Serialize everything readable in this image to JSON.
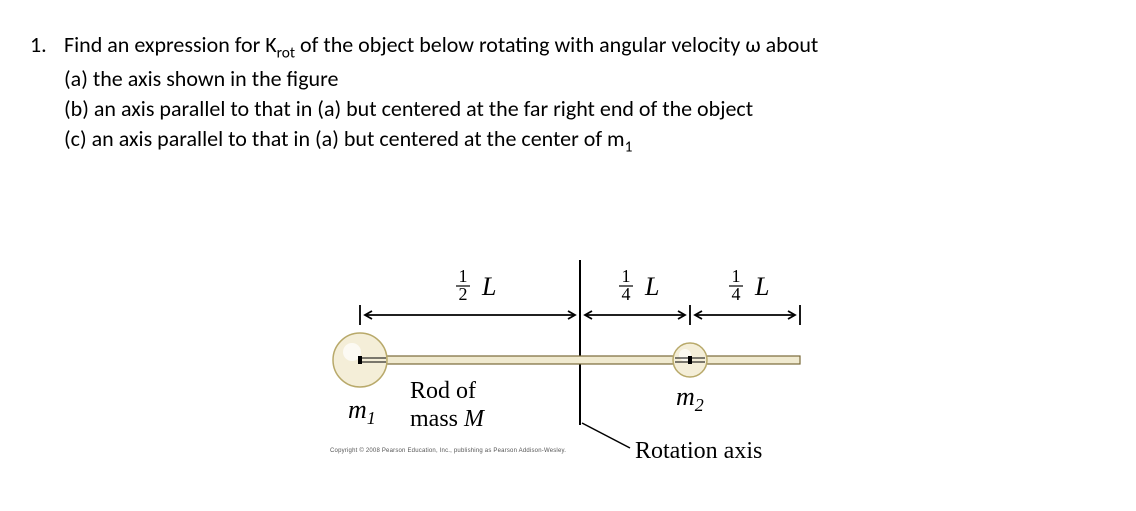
{
  "problem": {
    "number": "1.",
    "stem_html": "Find an expression for K<sub>rot</sub> of the object below rotating with angular velocity ω about",
    "parts": [
      "(a) the axis shown in the figure",
      "(b) an axis parallel to that in (a) but centered at the far right end of the object",
      "(c) an axis parallel to that in (a) but centered at the center of m<sub>1</sub>"
    ]
  },
  "diagram": {
    "segments": {
      "left": {
        "num": "1",
        "den": "2",
        "var": "L"
      },
      "mid": {
        "num": "1",
        "den": "4",
        "var": "L"
      },
      "right": {
        "num": "1",
        "den": "4",
        "var": "L"
      }
    },
    "mass_left": "m",
    "mass_left_sub": "1",
    "mass_right": "m",
    "mass_right_sub": "2",
    "rod_label_top": "Rod of",
    "rod_label_bot": "mass ",
    "rod_label_var": "M",
    "rotation_axis": "Rotation axis",
    "colors": {
      "stroke": "#000000",
      "ball_fill": "#f4eed8",
      "ball_stroke": "#b8a96a",
      "ball_highlight": "#ffffff"
    }
  },
  "copyright": "Copyright © 2008 Pearson Education, Inc., publishing as Pearson Addison-Wesley."
}
